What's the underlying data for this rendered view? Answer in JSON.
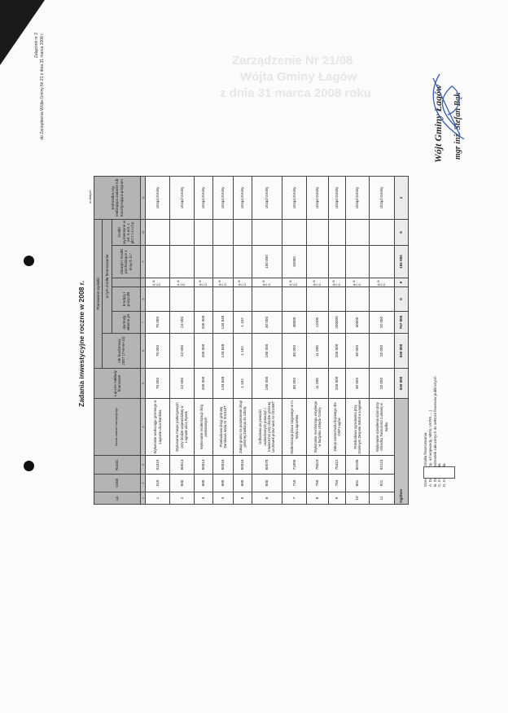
{
  "header_note": {
    "line1": "Załącznik nr 2",
    "line2": "do Zarządzenia Wójta Gminy Nr 21 z dnia 31 marca 2008 r."
  },
  "title": "Zadania inwestycyjne roczne w 2008 r.",
  "unit": "w złotych",
  "table": {
    "headers": {
      "lp": "Lp.",
      "dzial": "Dział",
      "rozdz": "Rozdz.",
      "nazwa": "Nazwa zadania inwestycyjnego",
      "laczne": "Łączne nakłady finansowe",
      "planowane": "Planowane wydatki",
      "rok": "rok budżetowy 2007 (7+8+9+10)",
      "w_tym": "w tym źródła finansowania",
      "wlasne": "dochody własne jst",
      "kredyty": "kredyty i pożyczki",
      "dotacje": "dotacje i środki pochodzące z innych źr.*",
      "srodki": "środki wymienione w art. 5 ust. 1 pkt 2 i 3 u.f.p.",
      "jednostka": "Jednostka org. realizująca zadanie lub koordynująca program"
    },
    "column_numbers": [
      "1",
      "2",
      "3",
      "4",
      "5",
      "6",
      "7",
      "8",
      "",
      "9",
      "10",
      "11"
    ],
    "abcd": "A. B. C. D.",
    "rows": [
      {
        "lp": "1",
        "dzial": "010",
        "rozdz": "01010",
        "nazwa": "Wykonanie wodociągu gminnego w Łagowie ulica Bardzka",
        "laczne": "70 000",
        "rok": "70 000",
        "wlasne": "70 000",
        "kredyty": "",
        "dotacje": "",
        "srodki": "",
        "jednostka": "Urząd Gminy"
      },
      {
        "lp": "2",
        "dzial": "600",
        "rozdz": "60013",
        "nazwa": "Wykonanie miejsc parkingowych przy drodze wojewódzkiej w Łagowie ulica Rynek",
        "laczne": "23 000",
        "rok": "23 000",
        "wlasne": "23 000",
        "kredyty": "",
        "dotacje": "",
        "srodki": "",
        "jednostka": "Urząd Gminy"
      },
      {
        "lp": "3",
        "dzial": "600",
        "rozdz": "60014",
        "nazwa": "Wykonanie modernizacji dróg powiatowych",
        "laczne": "200 000",
        "rok": "200 000",
        "wlasne": "200 000",
        "kredyty": "",
        "dotacje": "",
        "srodki": "",
        "jednostka": "Urząd Gminy"
      },
      {
        "lp": "4",
        "dzial": "600",
        "rozdz": "60016",
        "nazwa": "Przebudowa drogi gminnej Zamkowa Wola Nr 001518T",
        "laczne": "133 848",
        "rok": "133 848",
        "wlasne": "133 848",
        "kredyty": "",
        "dotacje": "",
        "srodki": "",
        "jednostka": "Urząd Gminy"
      },
      {
        "lp": "5",
        "dzial": "600",
        "rozdz": "60016",
        "nazwa": "Zakup gruntu na poszerzenie drogi gminnej Zasłonia do szkoły",
        "laczne": "1 152",
        "rok": "1 152",
        "wlasne": "1 152",
        "kredyty": "",
        "dotacje": "",
        "srodki": "",
        "jednostka": "Urząd Gminy"
      },
      {
        "lp": "6",
        "dzial": "600",
        "rozdz": "60078",
        "nazwa": "Odbudowa po powodzi uszkodzonych połaczyń i nawierzchni przy drodze gminnej Lechówek przez wieś Nr 001468T",
        "laczne": "180 000",
        "rok": "180 000",
        "wlasne": "30 000",
        "kredyty": "",
        "dotacje": "150 000",
        "srodki": "",
        "jednostka": "Urząd Gminy"
      },
      {
        "lp": "7",
        "dzial": "710",
        "rozdz": "71095",
        "nazwa": "Modernizacja placu targowego w m. Wola Łagowska",
        "laczne": "80 000",
        "rok": "80 000",
        "wlasne": "48000",
        "kredyty": "",
        "dotacje": "32000",
        "srodki": "",
        "jednostka": "Urząd Gminy"
      },
      {
        "lp": "8",
        "dzial": "750",
        "rozdz": "75023",
        "nazwa": "Wykonanie monitoringu wizyjnego w budynku Urzędu Gminy",
        "laczne": "11 000",
        "rok": "11 000",
        "wlasne": "11000",
        "kredyty": "",
        "dotacje": "",
        "srodki": "",
        "jednostka": "Urząd Gminy"
      },
      {
        "lp": "9",
        "dzial": "754",
        "rozdz": "75412",
        "nazwa": "Zakup samochodu bojowego dla OSP Łagów",
        "laczne": "200 000",
        "rok": "200 000",
        "wlasne": "200000",
        "kredyty": "",
        "dotacje": "",
        "srodki": "",
        "jednostka": "Urząd Gminy"
      },
      {
        "lp": "10",
        "dzial": "801",
        "rozdz": "80195",
        "nazwa": "Przebudowa ogrodzenia przy Gminnym Zespole Szkół w Łagowie",
        "laczne": "30 000",
        "rok": "30 000",
        "wlasne": "30000",
        "kredyty": "",
        "dotacje": "",
        "srodki": "",
        "jednostka": "Urząd Gminy"
      },
      {
        "lp": "11",
        "dzial": "921",
        "rozdz": "92113",
        "nazwa": "Wykonanie ocieplenia ścian przy Ośrodku Twórczości Ludowej w Sędku",
        "laczne": "20 000",
        "rok": "20 000",
        "wlasne": "20 000",
        "kredyty": "",
        "dotacje": "",
        "srodki": "",
        "jednostka": "Urząd Gminy"
      }
    ],
    "total": {
      "label": "Ogółem",
      "laczne": "949 000",
      "rok": "949 000",
      "wlasne": "767 000",
      "kredyty": "0",
      "abcd": "0",
      "dotacje": "182 000",
      "srodki": "0",
      "jednostka": "x"
    }
  },
  "footnotes": [
    "Oznaczenie źródła finansowania",
    "A. Dotacje (np. od wojewody, MEN, UKFiS, ...)",
    "B. Środki z jednostek zaliczanych do sektora finansów publicznych",
    "C. Inne źródła",
    "D. Inne źródła"
  ],
  "signature": {
    "title": "Wójt Gminy Łagów",
    "name": "mgr inż. Stefan Bąk",
    "ink_color": "#3a5fb0"
  },
  "bleed_through": [
    "Zarządzenie Nr 21/08",
    "Wójta Gminy Łagów",
    "z dnia 31 marca 2008 roku"
  ]
}
